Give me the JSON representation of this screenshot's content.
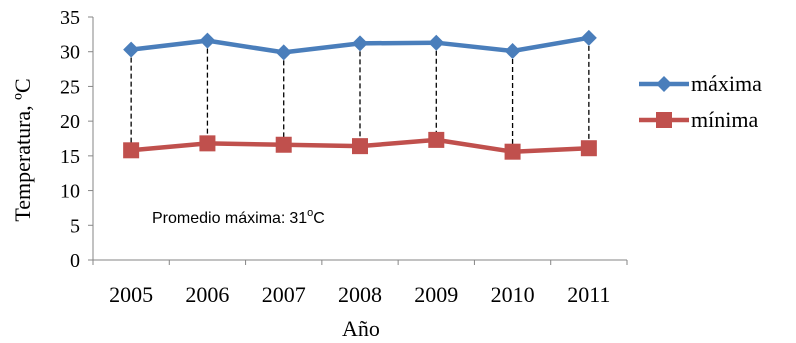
{
  "chart_data": {
    "type": "line",
    "categories": [
      "2005",
      "2006",
      "2007",
      "2008",
      "2009",
      "2010",
      "2011"
    ],
    "series": [
      {
        "name": "máxima",
        "color": "#4a7ebb",
        "marker": "diamond",
        "values": [
          30.3,
          31.6,
          29.9,
          31.2,
          31.3,
          30.1,
          32.0
        ]
      },
      {
        "name": "mínima",
        "color": "#c0504d",
        "marker": "square",
        "values": [
          15.8,
          16.8,
          16.6,
          16.4,
          17.3,
          15.6,
          16.1
        ]
      }
    ],
    "xlabel": "Año",
    "ylabel": "Temperatura, ºC",
    "ylim": [
      0,
      35
    ],
    "yticks": [
      "0",
      "5",
      "10",
      "15",
      "20",
      "25",
      "30",
      "35"
    ],
    "grid": false,
    "drop_lines": true,
    "legend": "right",
    "annotation": {
      "text": "Promedio  máxima:",
      "value": "31",
      "unit": "C",
      "degree": "o"
    }
  }
}
